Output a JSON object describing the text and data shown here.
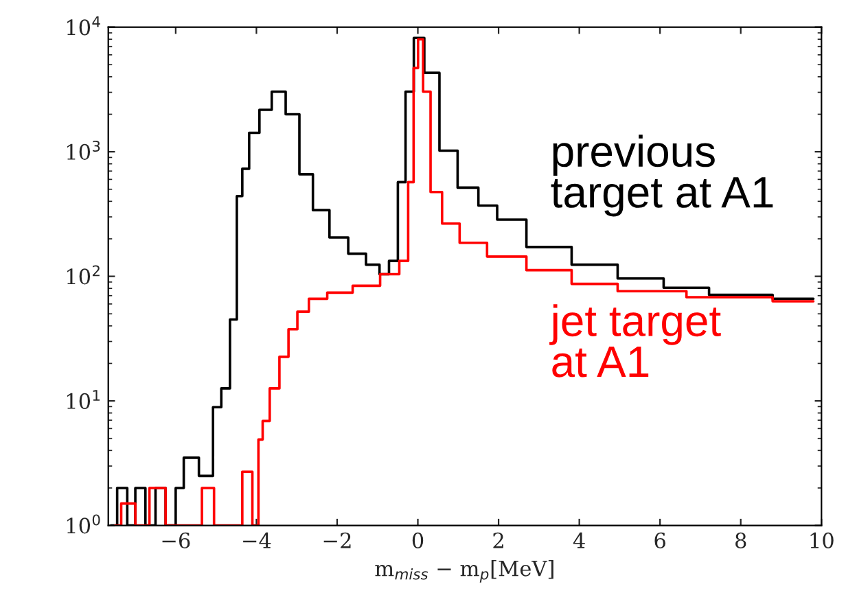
{
  "chart_data": {
    "type": "step",
    "xlabel": "m$_{miss}$ − m$_{p}$[MeV]",
    "xlim": [
      -7.67,
      10
    ],
    "xticks": [
      {
        "value": -6,
        "label": "−6"
      },
      {
        "value": -4,
        "label": "−4"
      },
      {
        "value": -2,
        "label": "−2"
      },
      0,
      2,
      4,
      6,
      8,
      10
    ],
    "ylim": [
      1,
      10000
    ],
    "yticks": [
      {
        "value": 1,
        "label": "10$^{0}$"
      },
      {
        "value": 10,
        "label": "10$^{1}$"
      },
      {
        "value": 100,
        "label": "10$^{2}$"
      },
      {
        "value": 1000,
        "label": "10$^{3}$"
      },
      {
        "value": 10000,
        "label": "10$^{4}$"
      }
    ],
    "log": "y",
    "grid": false,
    "legend": false,
    "series": [
      {
        "name": "previous\ntarget at A1",
        "color": "#000000",
        "x": [
          -7.6,
          -7.3,
          -7.1,
          -6.9,
          -6.6,
          -6.4,
          -6.1,
          -5.9,
          -5.7,
          -5.15,
          -5.0,
          -4.74,
          -4.57,
          -4.4,
          -4.3,
          -4.06,
          -3.79,
          -3.45,
          -3.1,
          -2.77,
          -2.43,
          -1.95,
          -1.5,
          -1.07,
          -0.83,
          -0.6,
          -0.39,
          -0.22,
          0.02,
          0.3,
          0.77,
          1.2,
          1.8,
          2.13,
          3.25,
          4.37,
          5.53,
          6.65,
          7.78,
          9.8
        ],
        "values": [
          1,
          2,
          1,
          2,
          1,
          2,
          1,
          2,
          3.5,
          2.5,
          8.9,
          12.6,
          45,
          440,
          730,
          1420,
          2170,
          3040,
          2000,
          660,
          340,
          205,
          152,
          124,
          104,
          133,
          570,
          3040,
          8200,
          4300,
          1020,
          515,
          370,
          285,
          172,
          124,
          96,
          81,
          71,
          66
        ]
      },
      {
        "name": "jet target\nat A1",
        "color": "#ff0000",
        "x": [
          -7.5,
          -7.2,
          -6.8,
          -6.5,
          -6.0,
          -5.5,
          -5.2,
          -4.9,
          -4.5,
          -4.2,
          -4.0,
          -3.9,
          -3.79,
          -3.55,
          -3.31,
          -3.1,
          -2.87,
          -2.53,
          -1.96,
          -1.27,
          -0.6,
          -0.32,
          -0.16,
          -0.05,
          0.06,
          0.2,
          0.43,
          0.77,
          1.3,
          2.13,
          3.25,
          4.37,
          5.53,
          7.78,
          9.8
        ],
        "values": [
          1,
          1.5,
          1,
          2,
          1,
          1,
          2,
          1,
          1,
          2.7,
          1,
          4.9,
          6.9,
          12.6,
          22.6,
          37.6,
          52,
          66,
          74,
          84,
          104,
          133,
          570,
          4700,
          8000,
          3040,
          475,
          265,
          186,
          144,
          112,
          87,
          76,
          68,
          63
        ]
      }
    ]
  }
}
